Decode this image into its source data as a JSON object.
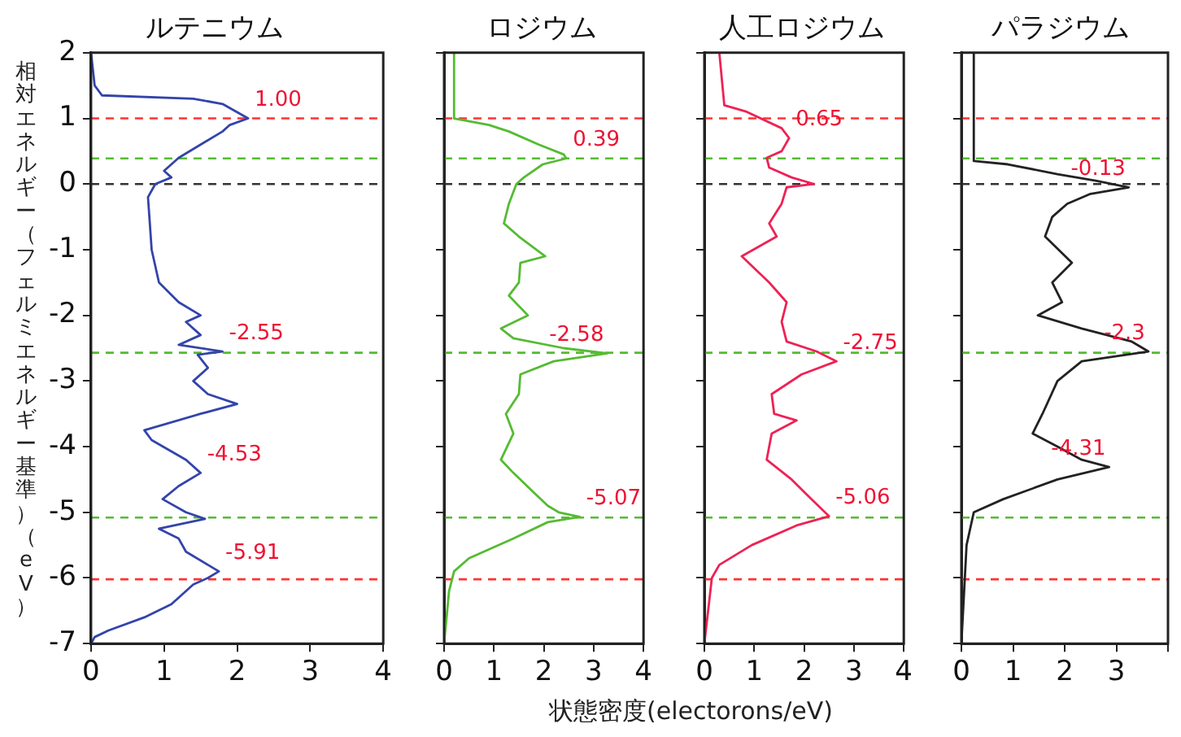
{
  "chart_data": [
    {
      "type": "line",
      "title": "ルテニウム",
      "ylabel": "相対エネルギー（フェルミエネルギー基準）（eV）",
      "xlim": [
        0,
        4
      ],
      "xticks": [
        0,
        1,
        2,
        3,
        4
      ],
      "ylim": [
        -7,
        2
      ],
      "yticks": [
        -7,
        -6,
        -5,
        -4,
        -3,
        -2,
        -1,
        0,
        1,
        2
      ],
      "grid": false,
      "legend": false,
      "line_style": "solid",
      "marker": "none",
      "series": [
        {
          "color": "#3344aa",
          "x": [
            0,
            0.05,
            0.15,
            1.4,
            1.8,
            2.15,
            1.9,
            1.8,
            1.5,
            1.2,
            1.0,
            1.1,
            0.88,
            0.78,
            0.83,
            0.93,
            1.2,
            1.5,
            1.3,
            1.5,
            1.2,
            1.8,
            1.46,
            1.6,
            1.4,
            1.6,
            2.0,
            1.5,
            0.73,
            0.83,
            1.3,
            1.5,
            1.2,
            0.98,
            1.3,
            1.56,
            0.93,
            1.2,
            1.3,
            1.6,
            1.75,
            1.6,
            1.4,
            1.1,
            0.73,
            0.24,
            0.05,
            0
          ],
          "values": [
            2,
            1.5,
            1.35,
            1.3,
            1.22,
            1.0,
            0.9,
            0.8,
            0.6,
            0.4,
            0.2,
            0.1,
            0,
            -0.2,
            -1,
            -1.5,
            -1.8,
            -2.0,
            -2.1,
            -2.3,
            -2.45,
            -2.55,
            -2.6,
            -2.8,
            -3.0,
            -3.2,
            -3.35,
            -3.5,
            -3.75,
            -3.9,
            -4.2,
            -4.4,
            -4.6,
            -4.8,
            -5.0,
            -5.1,
            -5.25,
            -5.4,
            -5.6,
            -5.8,
            -5.9,
            -6.0,
            -6.1,
            -6.4,
            -6.6,
            -6.8,
            -6.9,
            -7
          ]
        }
      ],
      "ref_lines": [
        {
          "axis": "y",
          "value": 1,
          "color": "#ff3333",
          "line_style": "dashed"
        },
        {
          "axis": "y",
          "value": 0.39,
          "color": "#55bb33",
          "line_style": "dashed"
        },
        {
          "axis": "y",
          "value": 0,
          "color": "#333333",
          "line_style": "dashed"
        },
        {
          "axis": "y",
          "value": -2.57,
          "color": "#55bb33",
          "line_style": "dashed"
        },
        {
          "axis": "y",
          "value": -5.08,
          "color": "#55bb33",
          "line_style": "dashed"
        },
        {
          "axis": "y",
          "value": -6.02,
          "color": "#ff3333",
          "line_style": "dashed"
        }
      ],
      "annotations": [
        {
          "text": "1.00",
          "x": 2.15,
          "y": 1.0
        },
        {
          "text": "-2.55",
          "x": 1.8,
          "y": -2.55
        },
        {
          "text": "-4.53",
          "x": 1.5,
          "y": -4.4
        },
        {
          "text": "-5.91",
          "x": 1.75,
          "y": -5.9
        }
      ]
    },
    {
      "type": "line",
      "title": "ロジウム",
      "xlabel": "状態密度(electorons/eV)",
      "xlim": [
        0,
        4
      ],
      "xticks": [
        0,
        1,
        2,
        3,
        4
      ],
      "ylim": [
        -7,
        2
      ],
      "yticks": [
        -7,
        -6,
        -5,
        -4,
        -3,
        -2,
        -1,
        0,
        1,
        2
      ],
      "tick_labels": "x",
      "grid": false,
      "legend": false,
      "line_style": "solid",
      "marker": "none",
      "series": [
        {
          "color": "#55bb33",
          "x": [
            0.2,
            0.2,
            0.9,
            1.3,
            1.9,
            2.4,
            2.45,
            1.98,
            1.6,
            1.45,
            1.3,
            1.2,
            1.5,
            2.03,
            1.53,
            1.5,
            1.3,
            1.68,
            1.14,
            1.39,
            2.4,
            3.27,
            2.2,
            1.53,
            1.5,
            1.24,
            1.39,
            1.14,
            1.39,
            1.8,
            2.08,
            2.3,
            2.72,
            2.08,
            1.39,
            0.5,
            0.2,
            0.1,
            0
          ],
          "values": [
            2,
            1.0,
            0.9,
            0.8,
            0.6,
            0.45,
            0.39,
            0.3,
            0.1,
            0,
            -0.3,
            -0.6,
            -0.8,
            -1.1,
            -1.2,
            -1.5,
            -1.7,
            -2.0,
            -2.2,
            -2.35,
            -2.5,
            -2.58,
            -2.7,
            -2.9,
            -3.2,
            -3.5,
            -3.8,
            -4.2,
            -4.4,
            -4.7,
            -4.9,
            -5.0,
            -5.07,
            -5.15,
            -5.4,
            -5.7,
            -5.9,
            -6.2,
            -7
          ]
        }
      ],
      "ref_lines": [
        {
          "axis": "y",
          "value": 1,
          "color": "#ff3333",
          "line_style": "dashed"
        },
        {
          "axis": "y",
          "value": 0.39,
          "color": "#55bb33",
          "line_style": "dashed"
        },
        {
          "axis": "y",
          "value": 0,
          "color": "#333333",
          "line_style": "dashed"
        },
        {
          "axis": "y",
          "value": -2.57,
          "color": "#55bb33",
          "line_style": "dashed"
        },
        {
          "axis": "y",
          "value": -5.08,
          "color": "#55bb33",
          "line_style": "dashed"
        },
        {
          "axis": "y",
          "value": -6.02,
          "color": "#ff3333",
          "line_style": "dashed"
        }
      ],
      "annotations": [
        {
          "text": "0.39",
          "x": 2.45,
          "y": 0.39
        },
        {
          "text": "-2.58",
          "x": 3.27,
          "y": -2.58
        },
        {
          "text": "-5.07",
          "x": 2.72,
          "y": -5.07
        }
      ]
    },
    {
      "type": "line",
      "title": "人工ロジウム",
      "xlim": [
        0,
        4
      ],
      "xticks": [
        0,
        1,
        2,
        3,
        4
      ],
      "ylim": [
        -7,
        2
      ],
      "yticks": [
        -7,
        -6,
        -5,
        -4,
        -3,
        -2,
        -1,
        0,
        1,
        2
      ],
      "tick_labels": "x",
      "grid": false,
      "legend": false,
      "line_style": "solid",
      "marker": "none",
      "series": [
        {
          "color": "#ee2255",
          "x": [
            0.3,
            0.4,
            0.85,
            1.55,
            1.7,
            1.55,
            1.25,
            1.3,
            1.75,
            2.2,
            1.65,
            1.55,
            1.3,
            1.45,
            0.75,
            1.3,
            1.65,
            1.55,
            1.65,
            2.25,
            2.65,
            1.95,
            1.35,
            1.4,
            1.85,
            1.35,
            1.25,
            1.75,
            2.15,
            2.5,
            1.85,
            0.95,
            0.3,
            0.15,
            0
          ],
          "values": [
            2,
            1.2,
            1.1,
            0.85,
            0.7,
            0.5,
            0.4,
            0.25,
            0.1,
            0,
            -0.05,
            -0.3,
            -0.6,
            -0.8,
            -1.1,
            -1.5,
            -1.8,
            -2.1,
            -2.4,
            -2.55,
            -2.7,
            -2.9,
            -3.2,
            -3.5,
            -3.6,
            -3.8,
            -4.2,
            -4.5,
            -4.8,
            -5.06,
            -5.2,
            -5.5,
            -5.8,
            -6.0,
            -7
          ]
        }
      ],
      "ref_lines": [
        {
          "axis": "y",
          "value": 1,
          "color": "#ff3333",
          "line_style": "dashed"
        },
        {
          "axis": "y",
          "value": 0.39,
          "color": "#55bb33",
          "line_style": "dashed"
        },
        {
          "axis": "y",
          "value": 0,
          "color": "#333333",
          "line_style": "dashed"
        },
        {
          "axis": "y",
          "value": -2.57,
          "color": "#55bb33",
          "line_style": "dashed"
        },
        {
          "axis": "y",
          "value": -5.08,
          "color": "#55bb33",
          "line_style": "dashed"
        },
        {
          "axis": "y",
          "value": -6.02,
          "color": "#ff3333",
          "line_style": "dashed"
        }
      ],
      "annotations": [
        {
          "text": "0.65",
          "x": 1.7,
          "y": 0.7
        },
        {
          "text": "-2.75",
          "x": 2.65,
          "y": -2.7
        },
        {
          "text": "-5.06",
          "x": 2.5,
          "y": -5.06
        }
      ]
    },
    {
      "type": "line",
      "title": "パラジウム",
      "xlim": [
        0,
        4
      ],
      "xticks": [
        0,
        1,
        2,
        3,
        {
          "value": 4,
          "label": null
        }
      ],
      "ylim": [
        -7,
        2
      ],
      "yticks": [
        -7,
        -6,
        -5,
        -4,
        -3,
        -2,
        -1,
        0,
        1,
        2
      ],
      "tick_labels": "x",
      "grid": false,
      "legend": false,
      "line_style": "solid",
      "marker": "none",
      "series": [
        {
          "color": "#222222",
          "x": [
            0.24,
            0.24,
            0.9,
            1.86,
            2.6,
            3.24,
            2.5,
            2.05,
            1.76,
            1.62,
            2.14,
            1.76,
            1.95,
            1.48,
            2.33,
            3.3,
            3.62,
            2.33,
            1.86,
            1.57,
            1.38,
            1.86,
            2.33,
            2.86,
            1.86,
            0.81,
            0.24,
            0.1,
            0
          ],
          "values": [
            2,
            0.35,
            0.3,
            0.15,
            0.05,
            -0.05,
            -0.15,
            -0.3,
            -0.5,
            -0.8,
            -1.2,
            -1.5,
            -1.8,
            -2.0,
            -2.2,
            -2.4,
            -2.55,
            -2.7,
            -3.0,
            -3.5,
            -3.8,
            -4.0,
            -4.2,
            -4.31,
            -4.5,
            -4.8,
            -5.0,
            -5.5,
            -7
          ]
        }
      ],
      "ref_lines": [
        {
          "axis": "y",
          "value": 1,
          "color": "#ff3333",
          "line_style": "dashed"
        },
        {
          "axis": "y",
          "value": 0.39,
          "color": "#55bb33",
          "line_style": "dashed"
        },
        {
          "axis": "y",
          "value": 0,
          "color": "#333333",
          "line_style": "dashed"
        },
        {
          "axis": "y",
          "value": -2.57,
          "color": "#55bb33",
          "line_style": "dashed"
        },
        {
          "axis": "y",
          "value": -5.08,
          "color": "#55bb33",
          "line_style": "dashed"
        },
        {
          "axis": "y",
          "value": -6.02,
          "color": "#ff3333",
          "line_style": "dashed"
        }
      ],
      "annotations": [
        {
          "text": "-0.13",
          "x": 3.24,
          "y": -0.05
        },
        {
          "text": "-2.3",
          "x": 3.62,
          "y": -2.55
        },
        {
          "text": "-4.31",
          "x": 2.86,
          "y": -4.31
        }
      ]
    }
  ]
}
